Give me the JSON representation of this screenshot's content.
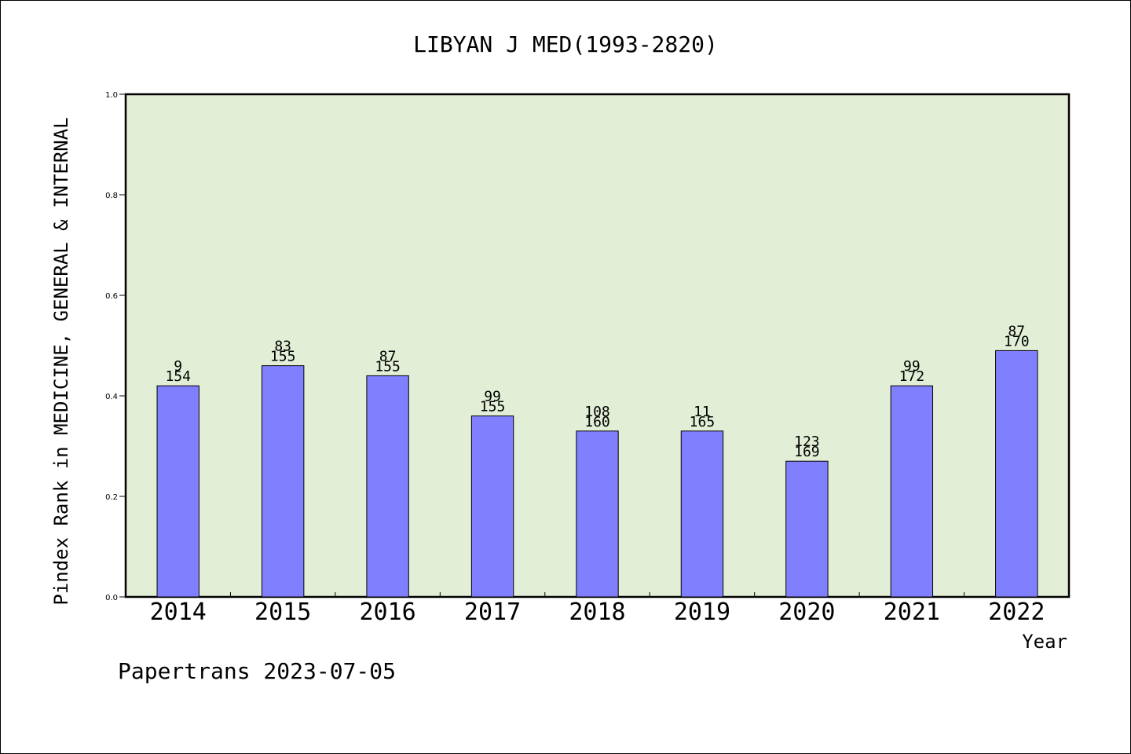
{
  "chart_data": {
    "type": "bar",
    "title": "LIBYAN J MED(1993-2820)",
    "xlabel": "Year",
    "ylabel": "Pindex Rank in MEDICINE, GENERAL & INTERNAL",
    "categories": [
      "2014",
      "2015",
      "2016",
      "2017",
      "2018",
      "2019",
      "2020",
      "2021",
      "2022"
    ],
    "values": [
      0.42,
      0.46,
      0.44,
      0.36,
      0.33,
      0.33,
      0.27,
      0.42,
      0.49
    ],
    "rank": [
      "9",
      "83",
      "87",
      "99",
      "108",
      "11",
      "123",
      "99",
      "87"
    ],
    "total": [
      "154",
      "155",
      "155",
      "155",
      "160",
      "165",
      "169",
      "172",
      "170"
    ],
    "ylim": [
      0,
      1.0
    ],
    "yticks": [
      "0.0",
      "0.2",
      "0.4",
      "0.6",
      "0.8",
      "1.0"
    ],
    "grid": false,
    "colors": {
      "bar": "#8080ff",
      "plot_background": "#e2efd6",
      "border": "#000000"
    }
  },
  "footer": "Papertrans 2023-07-05"
}
